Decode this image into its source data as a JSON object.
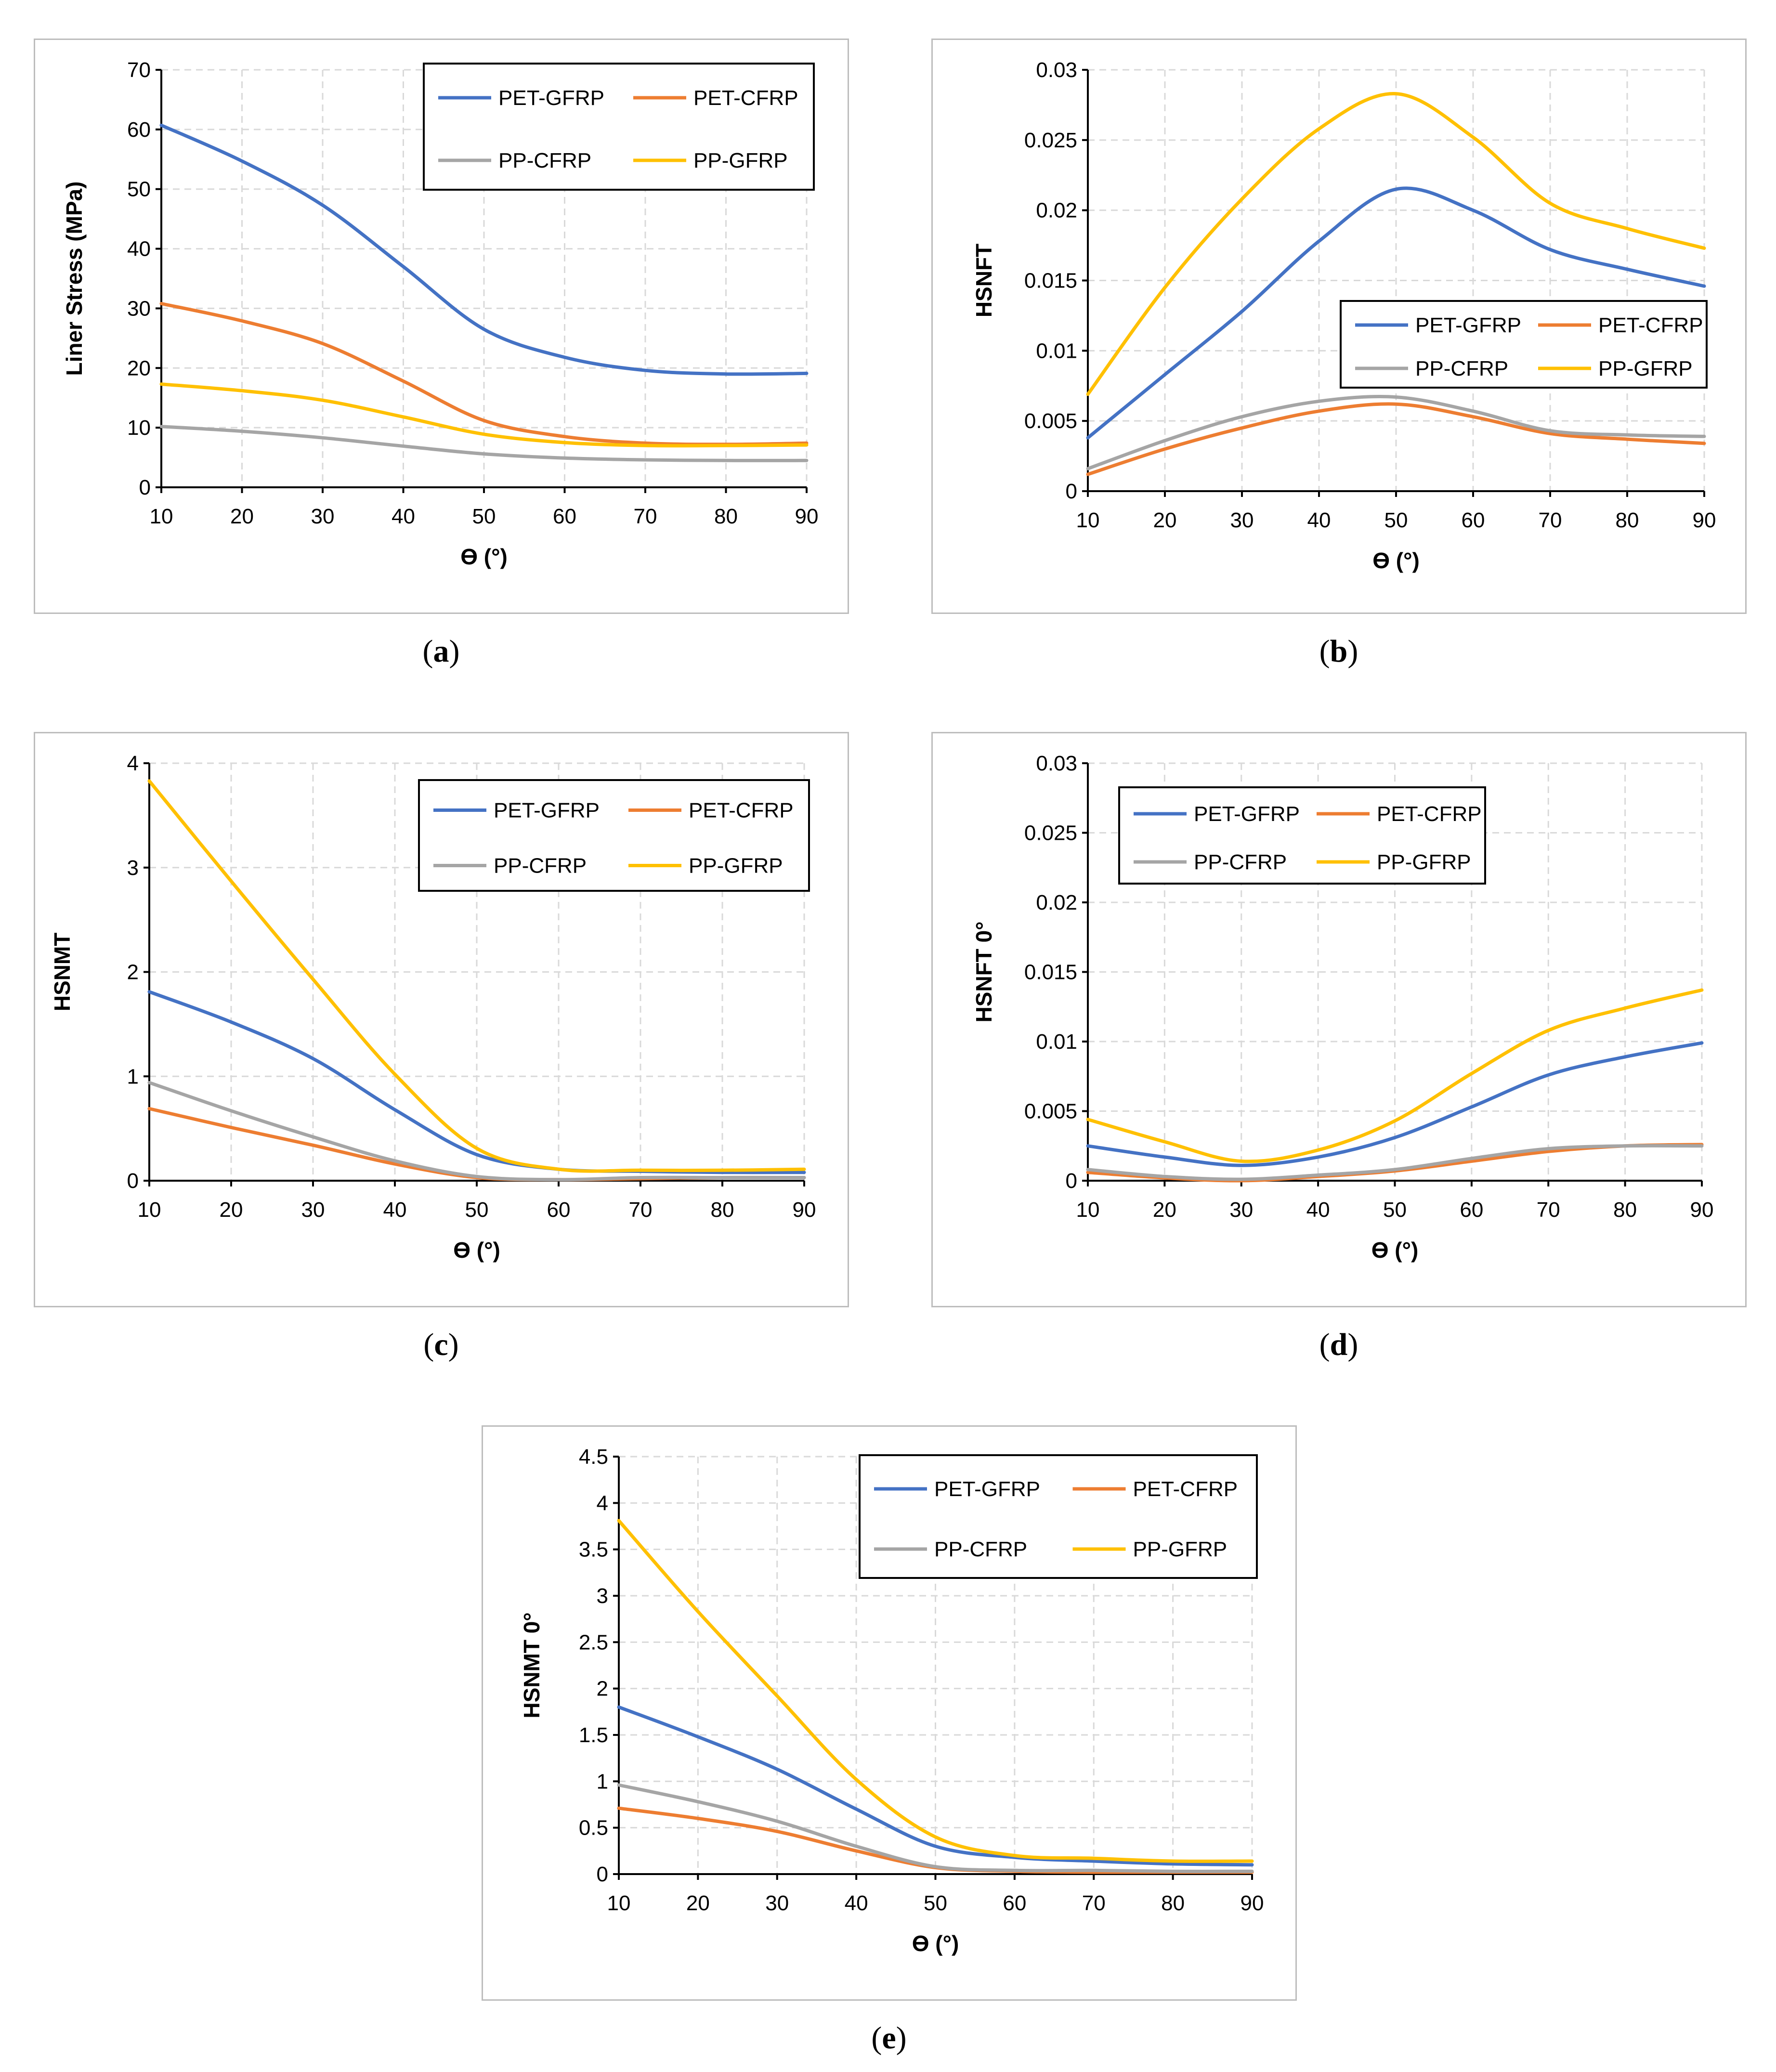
{
  "colors": {
    "PET-GFRP": "#4472C4",
    "PET-CFRP": "#ED7D31",
    "PP-CFRP": "#A5A5A5",
    "PP-GFRP": "#FFC000"
  },
  "chart_data": [
    {
      "id": "a",
      "type": "line",
      "caption_letter": "a",
      "title": "",
      "xlabel": "ϴ (°)",
      "ylabel": "Liner Stress (MPa)",
      "xlim": [
        10,
        90
      ],
      "ylim": [
        0,
        70
      ],
      "xticks": [
        10,
        20,
        30,
        40,
        50,
        60,
        70,
        80,
        90
      ],
      "yticks": [
        0,
        10,
        20,
        30,
        40,
        50,
        60,
        70
      ],
      "ytick_labels": [
        "0",
        "10",
        "20",
        "30",
        "40",
        "50",
        "60",
        "70"
      ],
      "x": [
        10,
        20,
        30,
        40,
        50,
        60,
        70,
        80,
        90
      ],
      "series": [
        {
          "name": "PET-GFRP",
          "values": [
            60.7,
            54.7,
            47.3,
            37.0,
            26.5,
            21.8,
            19.6,
            19.0,
            19.1
          ]
        },
        {
          "name": "PET-CFRP",
          "values": [
            30.8,
            27.9,
            24.1,
            17.8,
            11.2,
            8.5,
            7.4,
            7.2,
            7.4
          ]
        },
        {
          "name": "PP-CFRP",
          "values": [
            10.2,
            9.4,
            8.3,
            6.9,
            5.6,
            4.9,
            4.6,
            4.5,
            4.5
          ]
        },
        {
          "name": "PP-GFRP",
          "values": [
            17.3,
            16.2,
            14.6,
            11.8,
            8.9,
            7.5,
            7.0,
            7.0,
            7.1
          ]
        }
      ],
      "legend_order": [
        "PET-GFRP",
        "PET-CFRP",
        "PP-CFRP",
        "PP-GFRP"
      ]
    },
    {
      "id": "b",
      "type": "line",
      "caption_letter": "b",
      "title": "",
      "xlabel": "ϴ (°)",
      "ylabel": "HSNFT",
      "xlim": [
        10,
        90
      ],
      "ylim": [
        0,
        0.03
      ],
      "xticks": [
        10,
        20,
        30,
        40,
        50,
        60,
        70,
        80,
        90
      ],
      "yticks": [
        0,
        0.005,
        0.01,
        0.015,
        0.02,
        0.025,
        0.03
      ],
      "ytick_labels": [
        "0",
        "0.005",
        "0.01",
        "0.015",
        "0.02",
        "0.025",
        "0.03"
      ],
      "x": [
        10,
        20,
        30,
        40,
        50,
        60,
        70,
        80,
        90
      ],
      "series": [
        {
          "name": "PET-GFRP",
          "values": [
            0.0038,
            0.0083,
            0.0128,
            0.0178,
            0.0215,
            0.02,
            0.0172,
            0.0158,
            0.0146
          ]
        },
        {
          "name": "PET-CFRP",
          "values": [
            0.0012,
            0.003,
            0.0045,
            0.0057,
            0.0062,
            0.0053,
            0.0041,
            0.0037,
            0.0034
          ]
        },
        {
          "name": "PP-CFRP",
          "values": [
            0.0016,
            0.0036,
            0.0053,
            0.0064,
            0.0067,
            0.0057,
            0.0043,
            0.004,
            0.0039
          ]
        },
        {
          "name": "PP-GFRP",
          "values": [
            0.0069,
            0.0145,
            0.0208,
            0.0258,
            0.0283,
            0.0252,
            0.0205,
            0.0187,
            0.0173
          ]
        }
      ],
      "legend_order": [
        "PET-GFRP",
        "PET-CFRP",
        "PP-CFRP",
        "PP-GFRP"
      ]
    },
    {
      "id": "c",
      "type": "line",
      "caption_letter": "c",
      "title": "",
      "xlabel": "ϴ (°)",
      "ylabel": "HSNMT",
      "xlim": [
        10,
        90
      ],
      "ylim": [
        0,
        4
      ],
      "xticks": [
        10,
        20,
        30,
        40,
        50,
        60,
        70,
        80,
        90
      ],
      "yticks": [
        0,
        1,
        2,
        3,
        4
      ],
      "ytick_labels": [
        "0",
        "1",
        "2",
        "3",
        "4"
      ],
      "x": [
        10,
        20,
        30,
        40,
        50,
        60,
        70,
        80,
        90
      ],
      "series": [
        {
          "name": "PET-GFRP",
          "values": [
            1.81,
            1.52,
            1.17,
            0.68,
            0.25,
            0.11,
            0.09,
            0.08,
            0.08
          ]
        },
        {
          "name": "PET-CFRP",
          "values": [
            0.69,
            0.51,
            0.34,
            0.16,
            0.03,
            0.01,
            0.02,
            0.03,
            0.03
          ]
        },
        {
          "name": "PP-CFRP",
          "values": [
            0.94,
            0.67,
            0.42,
            0.19,
            0.04,
            0.01,
            0.03,
            0.03,
            0.03
          ]
        },
        {
          "name": "PP-GFRP",
          "values": [
            3.83,
            2.87,
            1.93,
            1.02,
            0.31,
            0.11,
            0.1,
            0.1,
            0.11
          ]
        }
      ],
      "legend_order": [
        "PET-GFRP",
        "PET-CFRP",
        "PP-CFRP",
        "PP-GFRP"
      ]
    },
    {
      "id": "d",
      "type": "line",
      "caption_letter": "d",
      "title": "",
      "xlabel": "ϴ (°)",
      "ylabel": "HSNFT 0°",
      "xlim": [
        10,
        90
      ],
      "ylim": [
        0,
        0.03
      ],
      "xticks": [
        10,
        20,
        30,
        40,
        50,
        60,
        70,
        80,
        90
      ],
      "yticks": [
        0,
        0.005,
        0.01,
        0.015,
        0.02,
        0.025,
        0.03
      ],
      "ytick_labels": [
        "0",
        "0.005",
        "0.01",
        "0.015",
        "0.02",
        "0.025",
        "0.03"
      ],
      "x": [
        10,
        20,
        30,
        40,
        50,
        60,
        70,
        80,
        90
      ],
      "series": [
        {
          "name": "PET-GFRP",
          "values": [
            0.0025,
            0.0017,
            0.0011,
            0.0017,
            0.0031,
            0.0053,
            0.0076,
            0.0089,
            0.0099
          ]
        },
        {
          "name": "PET-CFRP",
          "values": [
            0.0006,
            0.0002,
            0.0,
            0.0003,
            0.0007,
            0.0014,
            0.0021,
            0.0025,
            0.0026
          ]
        },
        {
          "name": "PP-CFRP",
          "values": [
            0.0008,
            0.0003,
            0.0001,
            0.0004,
            0.0008,
            0.0016,
            0.0023,
            0.0025,
            0.0025
          ]
        },
        {
          "name": "PP-GFRP",
          "values": [
            0.0044,
            0.0028,
            0.0014,
            0.0022,
            0.0043,
            0.0077,
            0.0108,
            0.0124,
            0.0137
          ]
        }
      ],
      "legend_order": [
        "PET-GFRP",
        "PET-CFRP",
        "PP-CFRP",
        "PP-GFRP"
      ]
    },
    {
      "id": "e",
      "type": "line",
      "caption_letter": "e",
      "title": "",
      "xlabel": "ϴ (°)",
      "ylabel": "HSNMT 0°",
      "xlim": [
        10,
        90
      ],
      "ylim": [
        0,
        4.5
      ],
      "xticks": [
        10,
        20,
        30,
        40,
        50,
        60,
        70,
        80,
        90
      ],
      "yticks": [
        0,
        0.5,
        1,
        1.5,
        2,
        2.5,
        3,
        3.5,
        4,
        4.5
      ],
      "ytick_labels": [
        "0",
        "0.5",
        "1",
        "1.5",
        "2",
        "2.5",
        "3",
        "3.5",
        "4",
        "4.5"
      ],
      "x": [
        10,
        20,
        30,
        40,
        50,
        60,
        70,
        80,
        90
      ],
      "series": [
        {
          "name": "PET-GFRP",
          "values": [
            1.8,
            1.48,
            1.13,
            0.7,
            0.3,
            0.18,
            0.14,
            0.11,
            0.1
          ]
        },
        {
          "name": "PET-CFRP",
          "values": [
            0.71,
            0.6,
            0.46,
            0.25,
            0.07,
            0.03,
            0.02,
            0.02,
            0.02
          ]
        },
        {
          "name": "PP-CFRP",
          "values": [
            0.96,
            0.78,
            0.57,
            0.3,
            0.08,
            0.04,
            0.04,
            0.03,
            0.03
          ]
        },
        {
          "name": "PP-GFRP",
          "values": [
            3.81,
            2.83,
            1.92,
            1.02,
            0.4,
            0.2,
            0.17,
            0.14,
            0.14
          ]
        }
      ],
      "legend_order": [
        "PET-GFRP",
        "PET-CFRP",
        "PP-CFRP",
        "PP-GFRP"
      ]
    }
  ]
}
